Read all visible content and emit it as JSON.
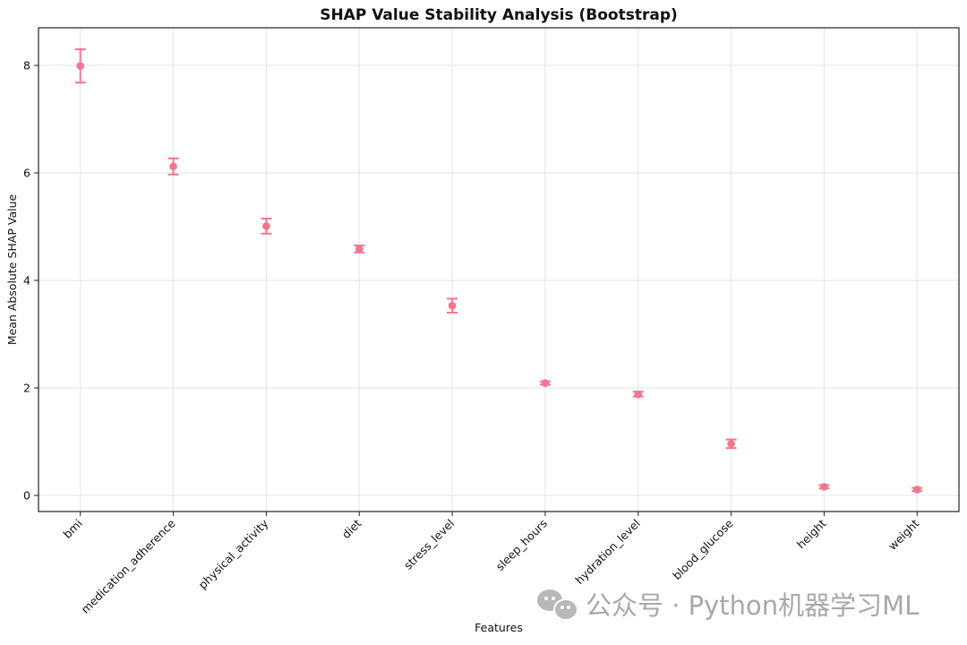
{
  "chart_data": {
    "type": "scatter",
    "title": "SHAP Value Stability Analysis (Bootstrap)",
    "xlabel": "Features",
    "ylabel": "Mean Absolute SHAP Value",
    "categories": [
      "bmi",
      "medication_adherence",
      "physical_activity",
      "diet",
      "stress_level",
      "sleep_hours",
      "hydration_level",
      "blood_glucose",
      "height",
      "weight"
    ],
    "values": [
      7.99,
      6.12,
      5.01,
      4.58,
      3.53,
      2.09,
      1.88,
      0.96,
      0.16,
      0.11
    ],
    "error_low": [
      7.68,
      5.97,
      4.87,
      4.52,
      3.4,
      2.06,
      1.84,
      0.88,
      0.13,
      0.08
    ],
    "error_high": [
      8.3,
      6.27,
      5.15,
      4.65,
      3.66,
      2.12,
      1.93,
      1.04,
      0.19,
      0.14
    ],
    "ylim": [
      -0.3,
      8.7
    ],
    "yticks": [
      0,
      2,
      4,
      6,
      8
    ],
    "grid": true,
    "color": "#f27690"
  },
  "watermark": {
    "icon": "wechat-icon",
    "text": "公众号 · Python机器学习ML"
  }
}
